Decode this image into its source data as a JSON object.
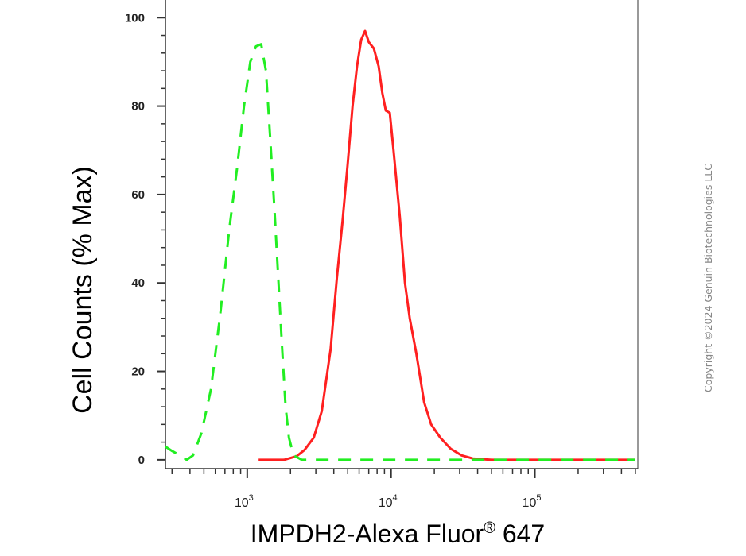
{
  "chart_data": {
    "type": "line",
    "xlabel": "IMPDH2-Alexa Fluor",
    "xlabel_superscript": "®",
    "xlabel_suffix": " 647",
    "ylabel": "Cell Counts (% Max)",
    "x_scale": "log",
    "xlim": [
      270,
      520000
    ],
    "ylim": [
      -2,
      104
    ],
    "y_ticks": [
      0,
      20,
      40,
      60,
      80,
      100
    ],
    "x_ticks": [
      {
        "value": 1000,
        "base": "10",
        "exp": "3"
      },
      {
        "value": 10000,
        "base": "10",
        "exp": "4"
      },
      {
        "value": 100000,
        "base": "10",
        "exp": "5"
      }
    ],
    "grid": false,
    "series": [
      {
        "color": "#ff2020",
        "style": "solid",
        "points": [
          [
            1200,
            0
          ],
          [
            1800,
            0
          ],
          [
            2200,
            0.8
          ],
          [
            2500,
            2.2
          ],
          [
            2900,
            5
          ],
          [
            3300,
            11
          ],
          [
            3800,
            25
          ],
          [
            4200,
            41
          ],
          [
            4600,
            54
          ],
          [
            5000,
            67
          ],
          [
            5400,
            80
          ],
          [
            5800,
            89
          ],
          [
            6200,
            95
          ],
          [
            6600,
            97
          ],
          [
            7000,
            94.5
          ],
          [
            7600,
            93
          ],
          [
            8200,
            89
          ],
          [
            8700,
            83
          ],
          [
            9200,
            79
          ],
          [
            9800,
            78.5
          ],
          [
            10400,
            70
          ],
          [
            11500,
            55
          ],
          [
            12500,
            40
          ],
          [
            13500,
            32
          ],
          [
            15000,
            24
          ],
          [
            17000,
            13
          ],
          [
            19000,
            8
          ],
          [
            22000,
            5
          ],
          [
            26000,
            2.5
          ],
          [
            31000,
            1
          ],
          [
            37000,
            0.3
          ],
          [
            50000,
            0
          ],
          [
            500000,
            0
          ]
        ]
      },
      {
        "color": "#22ee22",
        "style": "dashed",
        "points": [
          [
            270,
            3
          ],
          [
            300,
            2
          ],
          [
            340,
            1
          ],
          [
            380,
            0
          ],
          [
            420,
            1
          ],
          [
            480,
            6
          ],
          [
            560,
            16
          ],
          [
            650,
            33
          ],
          [
            750,
            52
          ],
          [
            850,
            66
          ],
          [
            950,
            80
          ],
          [
            1050,
            90
          ],
          [
            1150,
            93.5
          ],
          [
            1250,
            94
          ],
          [
            1350,
            88
          ],
          [
            1450,
            72
          ],
          [
            1550,
            56
          ],
          [
            1650,
            40
          ],
          [
            1750,
            25
          ],
          [
            1850,
            12
          ],
          [
            1950,
            5
          ],
          [
            2100,
            1
          ],
          [
            2400,
            0
          ],
          [
            500000,
            0
          ]
        ]
      }
    ]
  },
  "watermark": "Copyright ©2024 Genuin Biotechnologies LLC"
}
